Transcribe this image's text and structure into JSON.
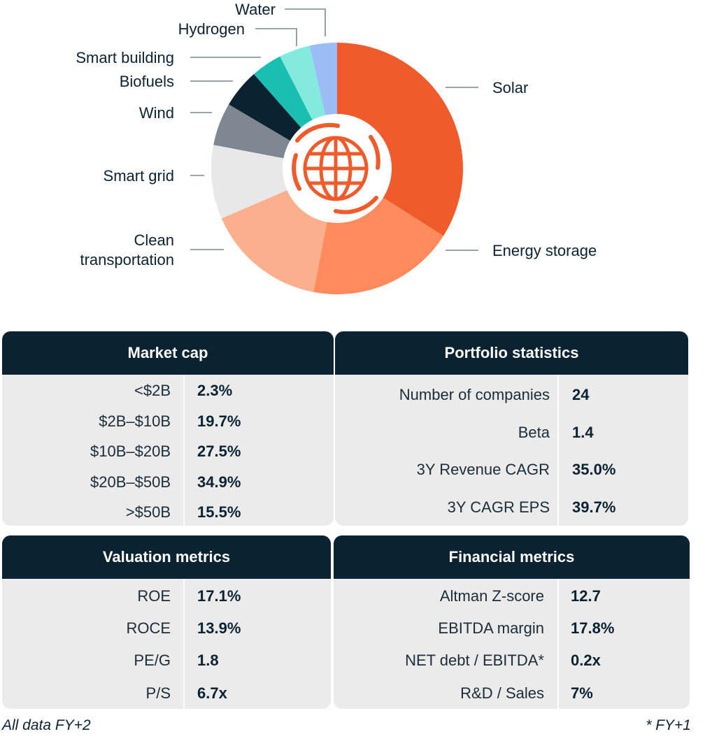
{
  "chart_data": {
    "type": "pie",
    "variant": "donut",
    "title": "",
    "categories": [
      "Solar",
      "Energy storage",
      "Clean transportation",
      "Smart grid",
      "Wind",
      "Biofuels",
      "Smart building",
      "Hydrogen",
      "Water"
    ],
    "values": [
      34.0,
      19.0,
      15.5,
      9.5,
      5.5,
      5.0,
      4.0,
      4.0,
      3.5
    ],
    "colors": [
      "#ef5b2b",
      "#ff8a5c",
      "#fcaf8d",
      "#e8e8e8",
      "#7f8890",
      "#0b2233",
      "#19bfb0",
      "#83eae0",
      "#9bbcf5"
    ],
    "center_icon": "globe-icon",
    "center_icon_color": "#ef5b2b"
  },
  "tables": {
    "market_cap": {
      "title": "Market cap",
      "rows": [
        {
          "label": "<$2B",
          "value": "2.3%"
        },
        {
          "label": "$2B–$10B",
          "value": "19.7%"
        },
        {
          "label": "$10B–$20B",
          "value": "27.5%"
        },
        {
          "label": "$20B–$50B",
          "value": "34.9%"
        },
        {
          "label": ">$50B",
          "value": "15.5%"
        }
      ]
    },
    "portfolio_statistics": {
      "title": "Portfolio statistics",
      "rows": [
        {
          "label": "Number of companies",
          "value": "24"
        },
        {
          "label": "Beta",
          "value": "1.4"
        },
        {
          "label": "3Y Revenue CAGR",
          "value": "35.0%"
        },
        {
          "label": "3Y CAGR EPS",
          "value": "39.7%"
        }
      ]
    },
    "valuation_metrics": {
      "title": "Valuation metrics",
      "rows": [
        {
          "label": "ROE",
          "value": "17.1%"
        },
        {
          "label": "ROCE",
          "value": "13.9%"
        },
        {
          "label": "PE/G",
          "value": "1.8"
        },
        {
          "label": "P/S",
          "value": "6.7x"
        }
      ]
    },
    "financial_metrics": {
      "title": "Financial metrics",
      "rows": [
        {
          "label": "Altman Z-score",
          "value": "12.7"
        },
        {
          "label": "EBITDA margin",
          "value": "17.8%"
        },
        {
          "label": "NET debt / EBITDA*",
          "value": "0.2x"
        },
        {
          "label": "R&D / Sales",
          "value": "7%"
        }
      ]
    }
  },
  "footnotes": {
    "left": "All data FY+2",
    "right": "* FY+1"
  },
  "colors": {
    "header_bg": "#0b2233",
    "panel_bg": "#ebebeb",
    "text": "#0b2233"
  }
}
